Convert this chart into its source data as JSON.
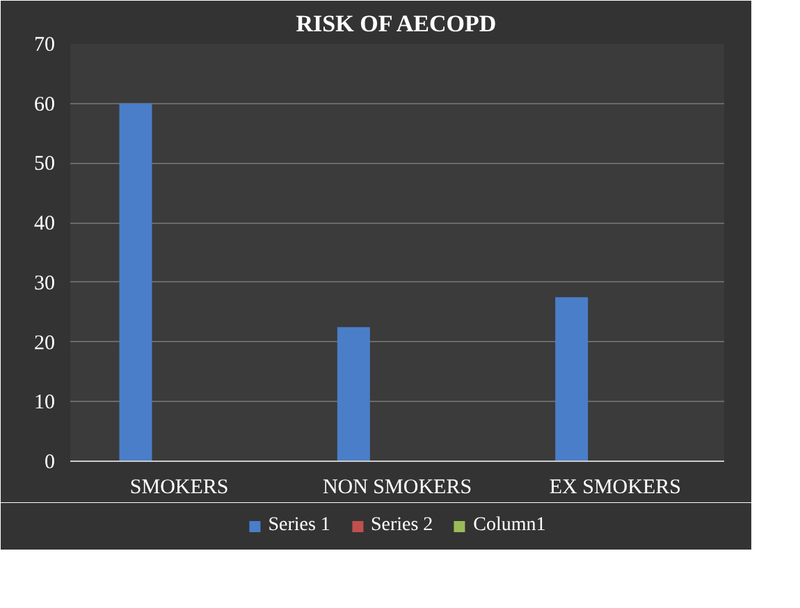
{
  "chart_data": {
    "type": "bar",
    "title": "RISK OF AECOPD",
    "categories": [
      "SMOKERS",
      "NON SMOKERS",
      "EX SMOKERS"
    ],
    "series": [
      {
        "name": "Series 1",
        "color": "#4a7ec8",
        "values": [
          60,
          22.5,
          27.5
        ]
      },
      {
        "name": "Series 2",
        "color": "#c0504d",
        "values": [
          null,
          null,
          null
        ]
      },
      {
        "name": "Column1",
        "color": "#9bbb59",
        "values": [
          null,
          null,
          null
        ]
      }
    ],
    "ylim": [
      0,
      70
    ],
    "yticks": [
      0,
      10,
      20,
      30,
      40,
      50,
      60,
      70
    ],
    "grid": "y",
    "legend": "bottom"
  }
}
